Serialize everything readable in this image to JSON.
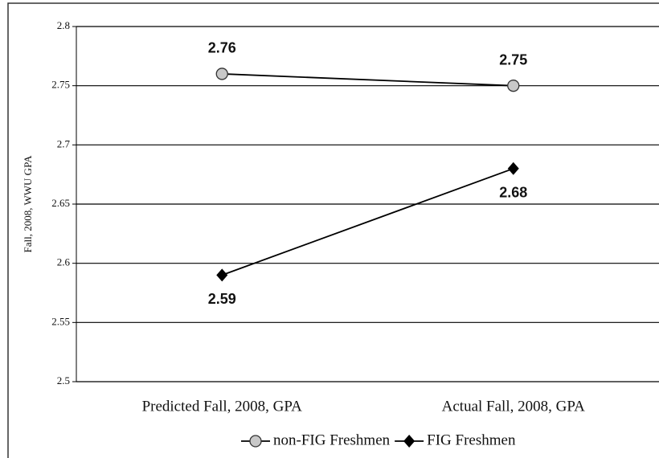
{
  "chart_data": {
    "type": "line",
    "y_label": "Fall, 2008, WWU GPA",
    "categories": [
      "Predicted Fall, 2008, GPA",
      "Actual Fall, 2008, GPA"
    ],
    "series": [
      {
        "name": "non-FIG Freshmen",
        "color": "#000000",
        "marker": "circle",
        "marker_fill": "#c8c8c8",
        "values": [
          2.76,
          2.75
        ]
      },
      {
        "name": "FIG Freshmen",
        "color": "#000000",
        "marker": "diamond",
        "marker_fill": "#000000",
        "values": [
          2.59,
          2.68
        ]
      }
    ],
    "ylim": [
      2.5,
      2.8
    ],
    "yticks": [
      2.5,
      2.55,
      2.6,
      2.65,
      2.7,
      2.75,
      2.8
    ],
    "grid": true,
    "legend": "bottom"
  }
}
